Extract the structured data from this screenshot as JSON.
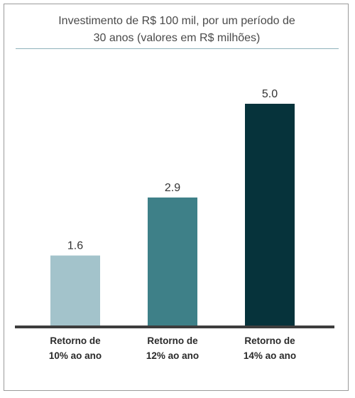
{
  "title_lines": [
    "Investimento de R$ 100 mil, por um período de",
    "30 anos (valores em R$ milhões)"
  ],
  "chart_data": {
    "type": "bar",
    "title": "Investimento de R$ 100 mil, por um período de 30 anos (valores em R$ milhões)",
    "categories": [
      [
        "Retorno de",
        "10% ao ano"
      ],
      [
        "Retorno de",
        "12% ao ano"
      ],
      [
        "Retorno de",
        "14% ao ano"
      ]
    ],
    "values": [
      1.6,
      2.9,
      5.0
    ],
    "value_labels": [
      "1.6",
      "2.9",
      "5.0"
    ],
    "colors": [
      "#a3c3cb",
      "#3e8088",
      "#06333b"
    ],
    "axis_color": "#3d3d3d",
    "ylim": [
      0,
      5.0
    ],
    "grid": false,
    "legend": "none"
  }
}
